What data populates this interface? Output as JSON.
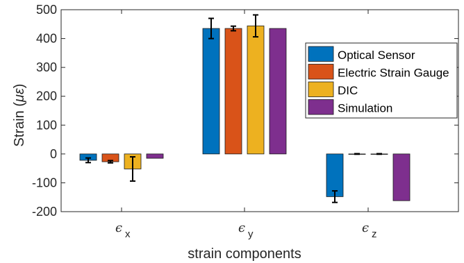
{
  "chart_data": {
    "type": "bar",
    "title": "",
    "xlabel": "strain components",
    "ylabel": "Strain (με)",
    "ylabel_parts": {
      "prefix": "Strain (",
      "unit": "με",
      "suffix": ")"
    },
    "ylim": [
      -200,
      500
    ],
    "yticks": [
      "-200",
      "-100",
      "0",
      "100",
      "200",
      "300",
      "400",
      "500"
    ],
    "categories": [
      {
        "symbol": "ϵ",
        "subscript": "x"
      },
      {
        "symbol": "ϵ",
        "subscript": "y"
      },
      {
        "symbol": "ϵ",
        "subscript": "z"
      }
    ],
    "series": [
      {
        "name": "Optical Sensor",
        "color": "#0072BD",
        "values": [
          -22,
          435,
          -148
        ],
        "errors": [
          8,
          35,
          20
        ]
      },
      {
        "name": "Electric Strain Gauge",
        "color": "#D95319",
        "values": [
          -27,
          435,
          0
        ],
        "errors": [
          4,
          8,
          1
        ]
      },
      {
        "name": "DIC",
        "color": "#EDB120",
        "values": [
          -52,
          444,
          0
        ],
        "errors": [
          42,
          38,
          1
        ]
      },
      {
        "name": "Simulation",
        "color": "#7E2F8E",
        "values": [
          -15,
          435,
          -162
        ],
        "errors": [
          null,
          null,
          null
        ]
      }
    ],
    "grid": false,
    "legend_position": "top-right"
  }
}
